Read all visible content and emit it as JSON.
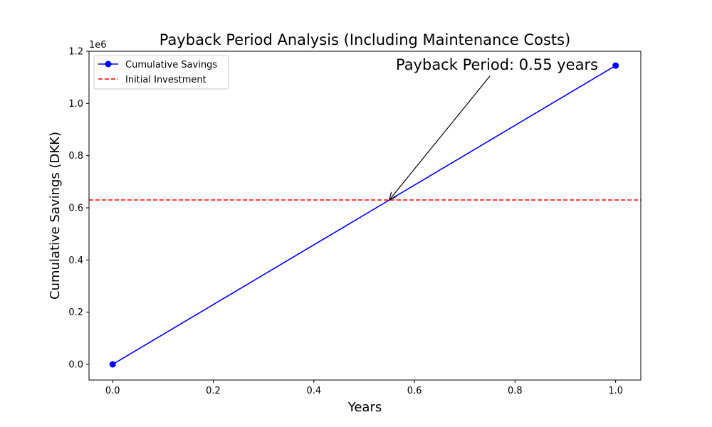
{
  "chart_data": {
    "type": "line",
    "title": "Payback Period Analysis (Including Maintenance Costs)",
    "xlabel": "Years",
    "ylabel": "Cumulative Savings (DKK)",
    "y_offset_label": "1e6",
    "xlim": [
      -0.047,
      1.05
    ],
    "ylim": [
      -60000,
      1200000
    ],
    "x_ticks": [
      0.0,
      0.2,
      0.4,
      0.6,
      0.8,
      1.0
    ],
    "x_tick_labels": [
      "0.0",
      "0.2",
      "0.4",
      "0.6",
      "0.8",
      "1.0"
    ],
    "y_ticks": [
      0,
      200000,
      400000,
      600000,
      800000,
      1000000,
      1200000
    ],
    "y_tick_labels": [
      "0.0",
      "0.2",
      "0.4",
      "0.6",
      "0.8",
      "1.0",
      "1.2"
    ],
    "grid": false,
    "legend_position": "top-left",
    "series": [
      {
        "name": "Cumulative Savings",
        "x": [
          0.0,
          1.0
        ],
        "y": [
          0,
          1145000
        ],
        "color": "#0000ff",
        "style": "solid",
        "marker": "circle"
      }
    ],
    "reference_lines": [
      {
        "name": "Initial Investment",
        "orientation": "horizontal",
        "y": 630000,
        "color": "#ff0000",
        "style": "dashed"
      }
    ],
    "annotations": [
      {
        "text": "Payback Period: 0.55 years",
        "point": [
          0.55,
          630000
        ],
        "text_anchor_point": [
          0.55,
          1125000
        ]
      }
    ]
  }
}
